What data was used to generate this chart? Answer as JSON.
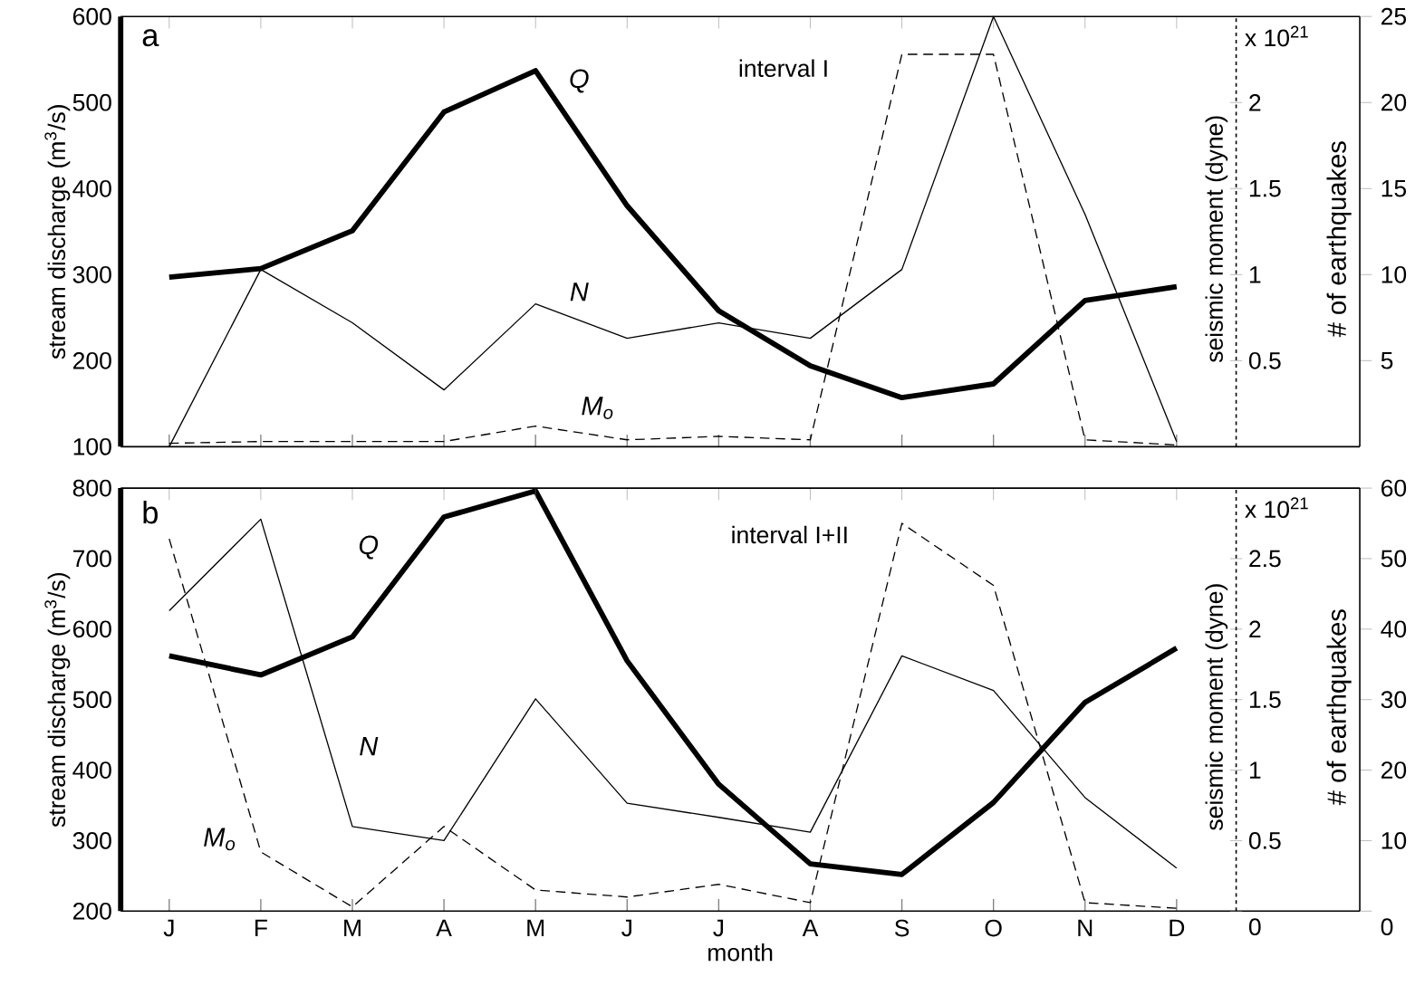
{
  "chart_data": [
    {
      "type": "line",
      "title": "a",
      "annotations": [
        "interval I",
        "x 10$^{21}$"
      ],
      "categories": [
        null,
        null,
        null,
        null,
        null,
        null,
        null,
        null,
        null,
        null,
        null,
        null
      ],
      "ylabel": "stream discharge (m$^{3}$/s)",
      "y2label": "seismic moment (dyne)",
      "y3label": "# of earthquakes",
      "ylim": [
        100,
        600
      ],
      "yticks": [
        100,
        200,
        300,
        400,
        500,
        600
      ],
      "y2lim": [
        0,
        2.5
      ],
      "y2ticks": [
        0.5,
        1,
        1.5,
        2
      ],
      "y3lim": [
        0,
        25
      ],
      "y3ticks": [
        5,
        10,
        15,
        20,
        25
      ],
      "tick_labels": "y",
      "legend": false,
      "grid": false,
      "series": [
        {
          "name": "Q",
          "color": "#000000",
          "line_style": "solid",
          "values": [
            297,
            307,
            351,
            489,
            537,
            380,
            258,
            194,
            157,
            173,
            270,
            286
          ]
        },
        {
          "name": "N",
          "color": "#000000",
          "line_style": "solid",
          "axis": "y3",
          "values": [
            0,
            10.3,
            7.2,
            3.3,
            8.3,
            6.3,
            7.2,
            6.3,
            10.3,
            25,
            13.5,
            0.3
          ]
        },
        {
          "name": "M$_{o}$",
          "color": "#000000",
          "line_style": "dashed",
          "axis": "y2",
          "values": [
            0.02,
            0.03,
            0.03,
            0.03,
            0.12,
            0.04,
            0.06,
            0.04,
            2.28,
            2.28,
            0.04,
            0.01
          ]
        }
      ]
    },
    {
      "type": "line",
      "title": "b",
      "annotations": [
        "interval I+II",
        "x 10$^{21}$"
      ],
      "categories": [
        "J",
        "F",
        "M",
        "A",
        "M",
        "J",
        "J",
        "A",
        "S",
        "O",
        "N",
        "D"
      ],
      "xlabel": "month",
      "ylabel": "stream discharge (m$^{3}$/s)",
      "y2label": "seismic moment (dyne)",
      "y3label": "# of earthquakes",
      "ylim": [
        200,
        800
      ],
      "yticks": [
        200,
        300,
        400,
        500,
        600,
        700,
        800
      ],
      "y2lim": [
        0,
        3
      ],
      "y2ticks": [
        0,
        0.5,
        1,
        1.5,
        2,
        2.5
      ],
      "y3lim": [
        0,
        60
      ],
      "y3ticks": [
        0,
        10,
        20,
        30,
        40,
        50,
        60
      ],
      "legend": false,
      "grid": false,
      "series": [
        {
          "name": "Q",
          "color": "#000000",
          "line_style": "solid",
          "values": [
            562,
            535,
            589,
            759,
            796,
            555,
            380,
            267,
            252,
            354,
            496,
            573
          ]
        },
        {
          "name": "N",
          "color": "#000000",
          "line_style": "solid",
          "axis": "y3",
          "values": [
            42.6,
            55.6,
            12,
            10,
            30.1,
            15.3,
            13.3,
            11.2,
            36.2,
            31.3,
            16.1,
            6.1
          ]
        },
        {
          "name": "M$_{o}$",
          "color": "#000000",
          "line_style": "dashed",
          "axis": "y2",
          "values": [
            2.64,
            0.42,
            0.03,
            0.6,
            0.15,
            0.1,
            0.19,
            0.06,
            2.75,
            2.31,
            0.06,
            0.02
          ]
        }
      ]
    }
  ]
}
